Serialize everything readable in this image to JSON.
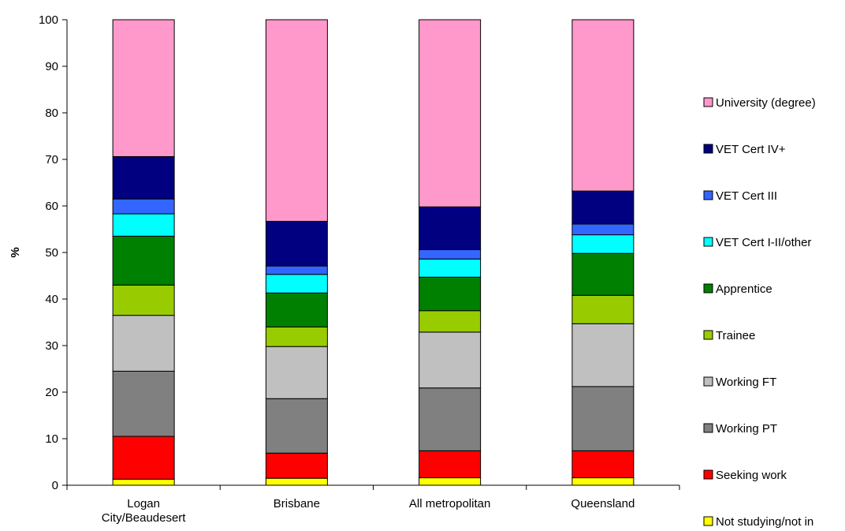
{
  "chart_data": {
    "type": "bar",
    "stacked": true,
    "ylabel": "%",
    "xlabel": "",
    "ylim": [
      0,
      100
    ],
    "yticks": [
      0,
      10,
      20,
      30,
      40,
      50,
      60,
      70,
      80,
      90,
      100
    ],
    "grid": false,
    "legend": "right",
    "categories": [
      [
        "Logan",
        "City/Beaudesert"
      ],
      [
        "Brisbane"
      ],
      [
        "All metropolitan"
      ],
      [
        "Queensland"
      ]
    ],
    "series": [
      {
        "name": "Not studying/not in labour force",
        "color": "#ffff00",
        "values": [
          1.3,
          1.5,
          1.6,
          1.6
        ]
      },
      {
        "name": "Seeking work",
        "color": "#ff0000",
        "values": [
          9.2,
          5.4,
          5.8,
          5.8
        ]
      },
      {
        "name": "Working PT",
        "color": "#808080",
        "values": [
          14.0,
          11.7,
          13.5,
          13.8
        ]
      },
      {
        "name": "Working FT",
        "color": "#c0c0c0",
        "values": [
          12.0,
          11.2,
          12.0,
          13.5
        ]
      },
      {
        "name": "Trainee",
        "color": "#99cc00",
        "values": [
          6.5,
          4.2,
          4.6,
          6.1
        ]
      },
      {
        "name": "Apprentice",
        "color": "#008000",
        "values": [
          10.5,
          7.3,
          7.2,
          9.0
        ]
      },
      {
        "name": "VET Cert I-II/other",
        "color": "#00ffff",
        "values": [
          4.8,
          4.0,
          3.9,
          4.0
        ]
      },
      {
        "name": "VET Cert III",
        "color": "#3366ff",
        "values": [
          3.2,
          1.8,
          2.0,
          2.3
        ]
      },
      {
        "name": "VET Cert IV+",
        "color": "#000080",
        "values": [
          9.1,
          9.6,
          9.2,
          7.1
        ]
      },
      {
        "name": "University (degree)",
        "color": "#ff99cc",
        "values": [
          29.4,
          43.3,
          40.2,
          36.8
        ]
      }
    ]
  }
}
